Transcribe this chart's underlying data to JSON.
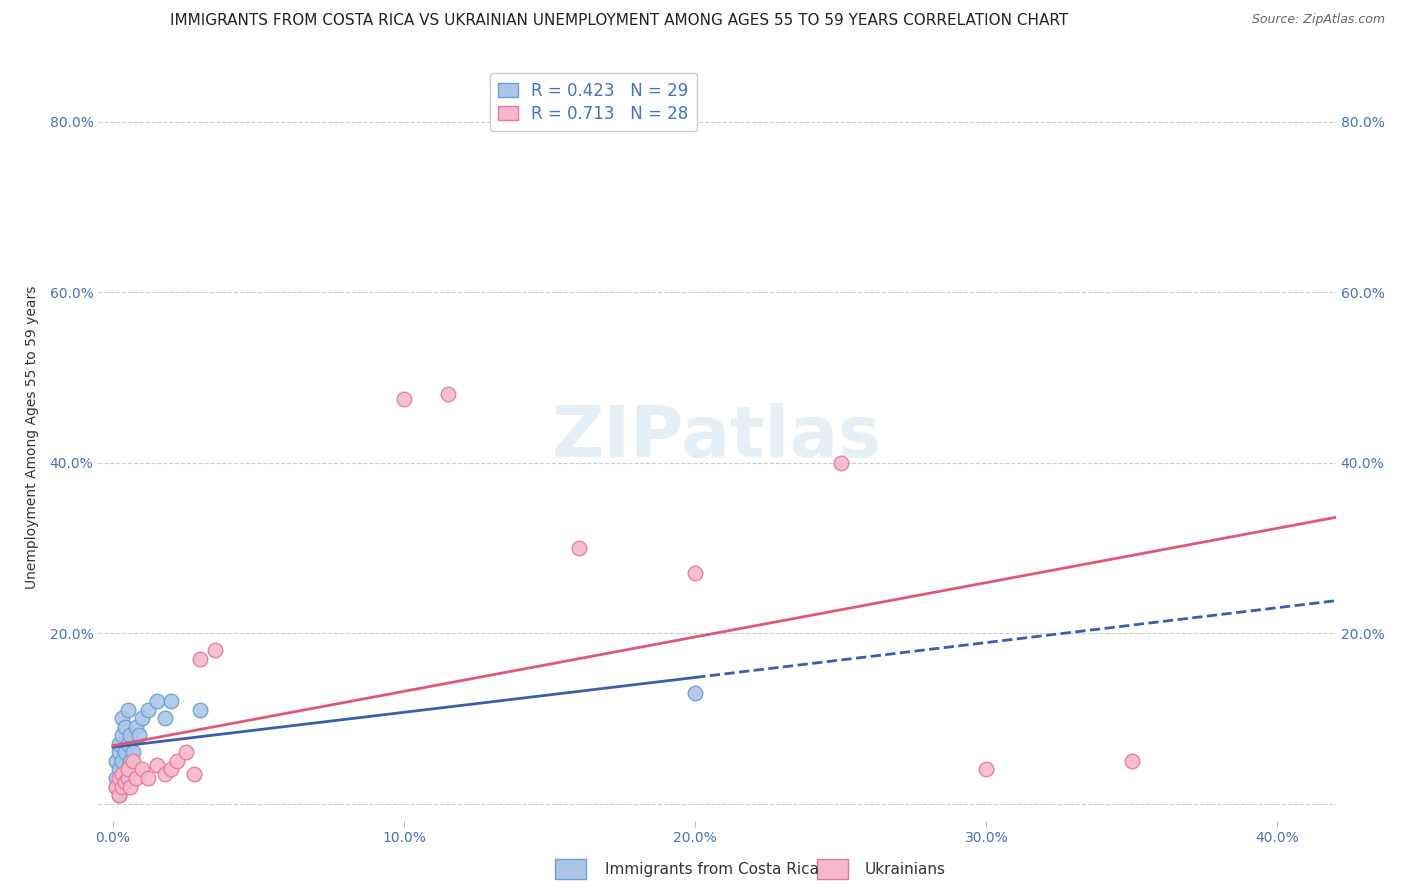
{
  "title": "IMMIGRANTS FROM COSTA RICA VS UKRAINIAN UNEMPLOYMENT AMONG AGES 55 TO 59 YEARS CORRELATION CHART",
  "source": "Source: ZipAtlas.com",
  "ylabel": "Unemployment Among Ages 55 to 59 years",
  "blue_R": 0.423,
  "blue_N": 29,
  "pink_R": 0.713,
  "pink_N": 28,
  "blue_scatter_x": [
    0.001,
    0.001,
    0.001,
    0.002,
    0.002,
    0.002,
    0.002,
    0.003,
    0.003,
    0.003,
    0.003,
    0.004,
    0.004,
    0.004,
    0.005,
    0.005,
    0.005,
    0.006,
    0.006,
    0.007,
    0.008,
    0.009,
    0.01,
    0.012,
    0.015,
    0.018,
    0.02,
    0.03,
    0.2
  ],
  "blue_scatter_y": [
    0.02,
    0.03,
    0.05,
    0.01,
    0.04,
    0.06,
    0.07,
    0.02,
    0.05,
    0.08,
    0.1,
    0.03,
    0.06,
    0.09,
    0.04,
    0.07,
    0.11,
    0.05,
    0.08,
    0.06,
    0.09,
    0.08,
    0.1,
    0.11,
    0.12,
    0.1,
    0.12,
    0.11,
    0.13
  ],
  "pink_scatter_x": [
    0.001,
    0.002,
    0.002,
    0.003,
    0.003,
    0.004,
    0.005,
    0.005,
    0.006,
    0.007,
    0.008,
    0.01,
    0.012,
    0.015,
    0.018,
    0.02,
    0.022,
    0.025,
    0.028,
    0.03,
    0.035,
    0.1,
    0.115,
    0.16,
    0.2,
    0.25,
    0.3,
    0.35
  ],
  "pink_scatter_y": [
    0.02,
    0.01,
    0.03,
    0.02,
    0.035,
    0.025,
    0.03,
    0.04,
    0.02,
    0.05,
    0.03,
    0.04,
    0.03,
    0.045,
    0.035,
    0.04,
    0.05,
    0.06,
    0.035,
    0.17,
    0.18,
    0.475,
    0.48,
    0.3,
    0.27,
    0.4,
    0.04,
    0.05
  ],
  "xlim": [
    -0.005,
    0.42
  ],
  "ylim": [
    -0.02,
    0.88
  ],
  "x_tick_positions": [
    0.0,
    0.1,
    0.2,
    0.3,
    0.4
  ],
  "x_tick_labels": [
    "0.0%",
    "10.0%",
    "20.0%",
    "30.0%",
    "40.0%"
  ],
  "y_tick_positions": [
    0.0,
    0.2,
    0.4,
    0.6,
    0.8
  ],
  "y_tick_labels": [
    "",
    "20.0%",
    "40.0%",
    "60.0%",
    "80.0%"
  ],
  "background_color": "#ffffff",
  "grid_color": "#cccccc",
  "blue_line_color": "#3a5fa8",
  "pink_line_color": "#e05878",
  "blue_scatter_facecolor": "#adc6e8",
  "blue_scatter_edgecolor": "#6a9fd8",
  "pink_scatter_facecolor": "#f5b8cc",
  "pink_scatter_edgecolor": "#e87898",
  "legend_blue_face": "#adc6e8",
  "legend_blue_edge": "#6a9fd8",
  "legend_pink_face": "#f5b8cc",
  "legend_pink_edge": "#e87898",
  "watermark_text": "ZIPatlas",
  "title_fontsize": 11,
  "axis_label_fontsize": 10,
  "tick_fontsize": 10,
  "legend_fontsize": 12
}
